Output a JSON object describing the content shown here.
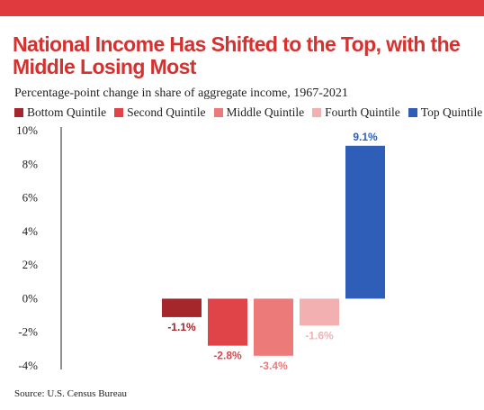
{
  "header": {
    "bar_color": "#e03a3e",
    "title": "National Income Has Shifted to the Top, with the Middle Losing Most",
    "title_color": "#d4312f",
    "subtitle": "Percentage-point change in share of aggregate income, 1967-2021"
  },
  "chart_data": {
    "type": "bar",
    "title": "National Income Has Shifted to the Top, with the Middle Losing Most",
    "subtitle": "Percentage-point change in share of aggregate income, 1967-2021",
    "categories": [
      "Bottom Quintile",
      "Second Quintile",
      "Middle Quintile",
      "Fourth Quintile",
      "Top Quintile"
    ],
    "values": [
      -1.1,
      -2.8,
      -3.4,
      -1.6,
      9.1
    ],
    "value_labels": [
      "-1.1%",
      "-2.8%",
      "-3.4%",
      "-1.6%",
      "9.1%"
    ],
    "colors": [
      "#a5272b",
      "#e04449",
      "#ec7a79",
      "#f3b0b0",
      "#2f5eb8"
    ],
    "ylim": [
      -4,
      10
    ],
    "yticks": [
      -4,
      -2,
      0,
      2,
      4,
      6,
      8,
      10
    ],
    "ytick_labels": [
      "-4%",
      "-2%",
      "0%",
      "2%",
      "4%",
      "6%",
      "8%",
      "10%"
    ],
    "legend_position": "top",
    "grid": false
  },
  "source": "Source: U.S. Census Bureau"
}
